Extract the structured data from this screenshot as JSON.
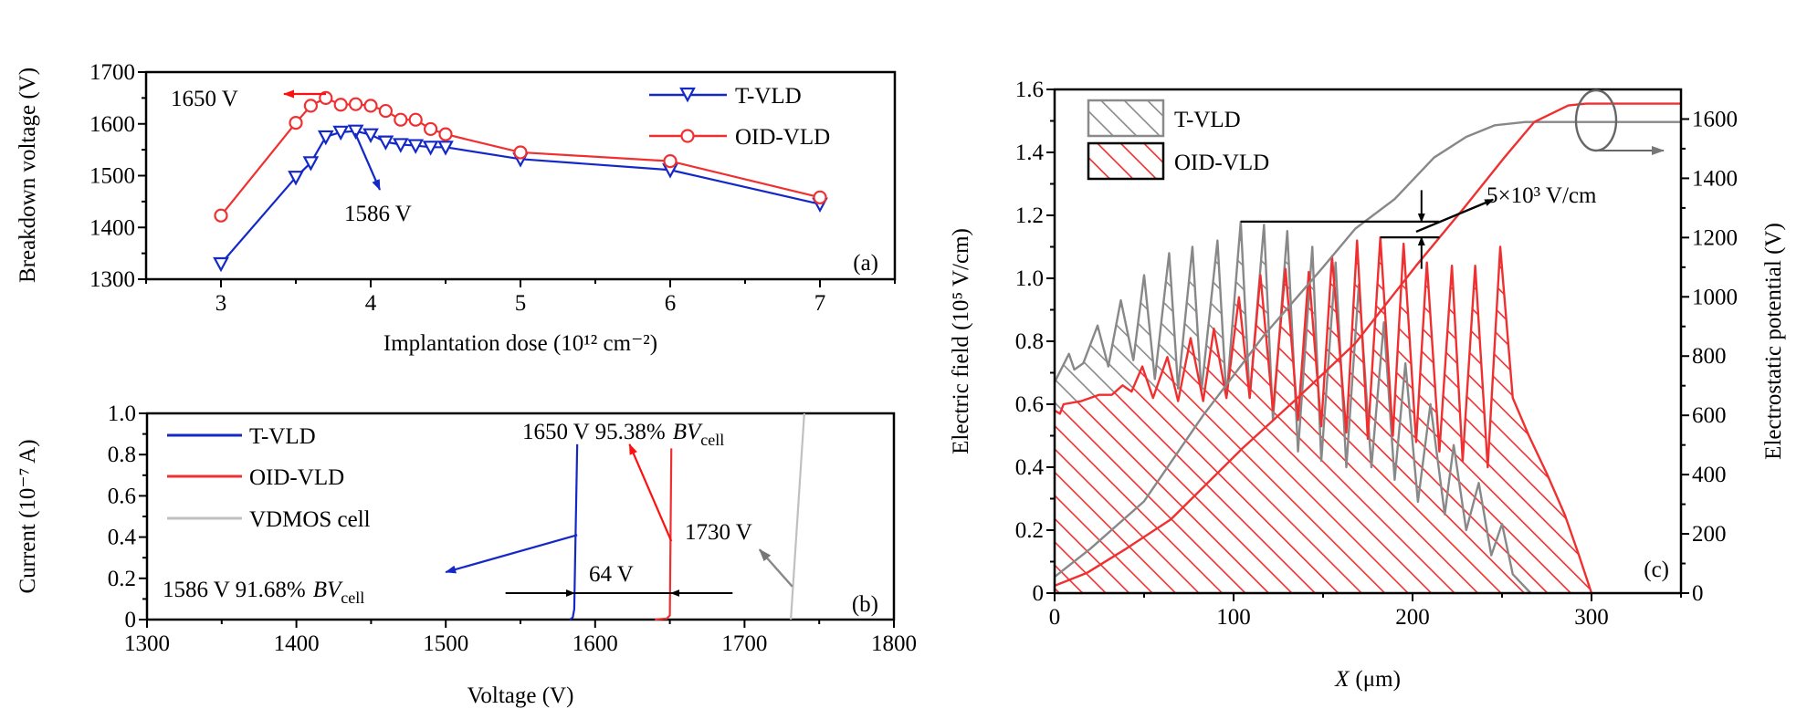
{
  "colors": {
    "t_vld": "#1428c8",
    "oid_vld": "#f03030",
    "vdmos": "#c0c0c0",
    "t_vld_text": "#0a0aff",
    "oid_text": "#ff1010",
    "gray_curve": "#888888",
    "axis": "#000000"
  },
  "chart_data": [
    {
      "panel_label": "(a)",
      "type": "line",
      "title": "",
      "xlabel": "Implantation dose (10¹² cm⁻²)",
      "ylabel": "Breakdown voltage (V)",
      "xlim": [
        2.5,
        7.5
      ],
      "ylim": [
        1300,
        1700
      ],
      "xticks": [
        3,
        4,
        5,
        6,
        7
      ],
      "yticks": [
        1300,
        1400,
        1500,
        1600,
        1700
      ],
      "grid": false,
      "legend_position": "top-right",
      "series": [
        {
          "name": "T-VLD",
          "marker": "triangle-down-open",
          "x": [
            3,
            3.5,
            3.6,
            3.7,
            3.8,
            3.9,
            4.0,
            4.1,
            4.2,
            4.3,
            4.4,
            4.5,
            5,
            6,
            7
          ],
          "y": [
            1330,
            1497,
            1525,
            1575,
            1584,
            1586,
            1579,
            1565,
            1560,
            1558,
            1555,
            1555,
            1532,
            1511,
            1445
          ]
        },
        {
          "name": "OID-VLD",
          "marker": "circle-open",
          "x": [
            3,
            3.5,
            3.6,
            3.7,
            3.8,
            3.9,
            4.0,
            4.1,
            4.2,
            4.3,
            4.4,
            4.5,
            5,
            6,
            7
          ],
          "y": [
            1423,
            1602,
            1635,
            1650,
            1637,
            1638,
            1635,
            1625,
            1608,
            1608,
            1590,
            1580,
            1545,
            1528,
            1458
          ]
        }
      ],
      "annotations": {
        "oid_peak": "1650 V",
        "t_peak": "1586 V"
      }
    },
    {
      "panel_label": "(b)",
      "type": "line",
      "title": "",
      "xlabel": "Voltage (V)",
      "ylabel": "Current (10⁻⁷ A)",
      "xlim": [
        1300,
        1800
      ],
      "ylim": [
        0,
        1.0
      ],
      "xticks": [
        1300,
        1400,
        1500,
        1600,
        1700,
        1800
      ],
      "yticks": [
        "0",
        "0.2",
        "0.4",
        "0.6",
        "0.8",
        "1.0"
      ],
      "grid": false,
      "legend_position": "top-left",
      "series": [
        {
          "name": "T-VLD",
          "points": [
            [
              1583,
              0
            ],
            [
              1585,
              0.01
            ],
            [
              1586,
              0.05
            ],
            [
              1588,
              0.85
            ]
          ]
        },
        {
          "name": "OID-VLD",
          "points": [
            [
              1640,
              0
            ],
            [
              1648,
              0.005
            ],
            [
              1650,
              0.02
            ],
            [
              1651,
              0.83
            ]
          ]
        },
        {
          "name": "VDMOS cell",
          "points": [
            [
              1731,
              0
            ],
            [
              1740,
              1.0
            ]
          ]
        }
      ],
      "annotations": {
        "t_text": "1586 V 91.68%",
        "oid_text": "1650 V 95.38%",
        "bv_symbol": "BV",
        "bv_subscript": "cell",
        "cell_text": "1730 V",
        "gap_text": "64 V"
      }
    },
    {
      "panel_label": "(c)",
      "type": "area",
      "title": "",
      "xlabel_var": "X",
      "xlabel_unit": "(μm)",
      "ylabel": "Electric field (10⁵ V/cm)",
      "ylabel_right": "Electrostatic potential (V)",
      "xlim": [
        0,
        350
      ],
      "ylim": [
        0,
        1.6
      ],
      "ylim_right": [
        0,
        1700
      ],
      "xticks": [
        0,
        100,
        200,
        300
      ],
      "yticks": [
        "0",
        "0.2",
        "0.4",
        "0.6",
        "0.8",
        "1.0",
        "1.2",
        "1.4",
        "1.6"
      ],
      "yticks_right": [
        0,
        200,
        400,
        600,
        800,
        1000,
        1200,
        1400,
        1600
      ],
      "grid": false,
      "legend_position": "top-left",
      "series": [
        {
          "name": "T-VLD",
          "kind": "electric-field-hatched",
          "points": [
            [
              0,
              0.67
            ],
            [
              8,
              0.76
            ],
            [
              11,
              0.71
            ],
            [
              16,
              0.73
            ],
            [
              24,
              0.85
            ],
            [
              30,
              0.72
            ],
            [
              37,
              0.93
            ],
            [
              44,
              0.74
            ],
            [
              50,
              1.01
            ],
            [
              56,
              0.68
            ],
            [
              64,
              1.08
            ],
            [
              69,
              0.65
            ],
            [
              77,
              1.1
            ],
            [
              82,
              0.64
            ],
            [
              91,
              1.12
            ],
            [
              96,
              0.62
            ],
            [
              104,
              1.18
            ],
            [
              109,
              0.62
            ],
            [
              117,
              1.17
            ],
            [
              122,
              0.55
            ],
            [
              130,
              1.15
            ],
            [
              136,
              0.45
            ],
            [
              144,
              1.1
            ],
            [
              149,
              0.42
            ],
            [
              157,
              1.05
            ],
            [
              163,
              0.4
            ],
            [
              170,
              0.98
            ],
            [
              177,
              0.4
            ],
            [
              184,
              0.86
            ],
            [
              190,
              0.36
            ],
            [
              196,
              0.73
            ],
            [
              203,
              0.29
            ],
            [
              210,
              0.6
            ],
            [
              218,
              0.25
            ],
            [
              223,
              0.47
            ],
            [
              230,
              0.2
            ],
            [
              237,
              0.35
            ],
            [
              244,
              0.12
            ],
            [
              250,
              0.22
            ],
            [
              256,
              0.06
            ],
            [
              266,
              0
            ]
          ]
        },
        {
          "name": "OID-VLD",
          "kind": "electric-field-hatched",
          "points": [
            [
              0,
              0.58
            ],
            [
              3,
              0.57
            ],
            [
              5,
              0.6
            ],
            [
              15,
              0.61
            ],
            [
              25,
              0.63
            ],
            [
              32,
              0.63
            ],
            [
              38,
              0.66
            ],
            [
              43,
              0.64
            ],
            [
              49,
              0.72
            ],
            [
              55,
              0.62
            ],
            [
              63,
              0.75
            ],
            [
              69,
              0.61
            ],
            [
              76,
              0.81
            ],
            [
              83,
              0.61
            ],
            [
              89,
              0.84
            ],
            [
              96,
              0.62
            ],
            [
              103,
              0.94
            ],
            [
              109,
              0.62
            ],
            [
              115,
              1.01
            ],
            [
              122,
              0.58
            ],
            [
              129,
              1.03
            ],
            [
              136,
              0.55
            ],
            [
              142,
              1.02
            ],
            [
              149,
              0.53
            ],
            [
              155,
              1.07
            ],
            [
              163,
              0.51
            ],
            [
              169,
              1.12
            ],
            [
              175,
              0.49
            ],
            [
              182,
              1.13
            ],
            [
              189,
              0.5
            ],
            [
              195,
              1.11
            ],
            [
              202,
              0.48
            ],
            [
              208,
              1.05
            ],
            [
              215,
              0.45
            ],
            [
              222,
              1.04
            ],
            [
              228,
              0.42
            ],
            [
              235,
              1.04
            ],
            [
              242,
              0.4
            ],
            [
              249,
              1.1
            ],
            [
              256,
              0.62
            ],
            [
              265,
              0.5
            ],
            [
              275,
              0.38
            ],
            [
              285,
              0.25
            ],
            [
              293,
              0.12
            ],
            [
              300,
              0
            ]
          ]
        },
        {
          "kind": "potential-T-VLD",
          "points": [
            [
              0,
              55
            ],
            [
              20,
              150
            ],
            [
              50,
              310
            ],
            [
              83,
              600
            ],
            [
              117,
              870
            ],
            [
              150,
              1100
            ],
            [
              168,
              1230
            ],
            [
              190,
              1330
            ],
            [
              212,
              1470
            ],
            [
              230,
              1540
            ],
            [
              246,
              1579
            ],
            [
              263,
              1590
            ],
            [
              350,
              1590
            ]
          ]
        },
        {
          "kind": "potential-OID-VLD",
          "points": [
            [
              0,
              25
            ],
            [
              18,
              68
            ],
            [
              40,
              150
            ],
            [
              65,
              249
            ],
            [
              105,
              489
            ],
            [
              134,
              649
            ],
            [
              168,
              843
            ],
            [
              202,
              1105
            ],
            [
              229,
              1302
            ],
            [
              251,
              1468
            ],
            [
              268,
              1590
            ],
            [
              287,
              1646
            ],
            [
              297,
              1652
            ],
            [
              350,
              1652
            ]
          ]
        }
      ],
      "annotations": {
        "field_difference": "5×10³ V/cm"
      }
    }
  ]
}
